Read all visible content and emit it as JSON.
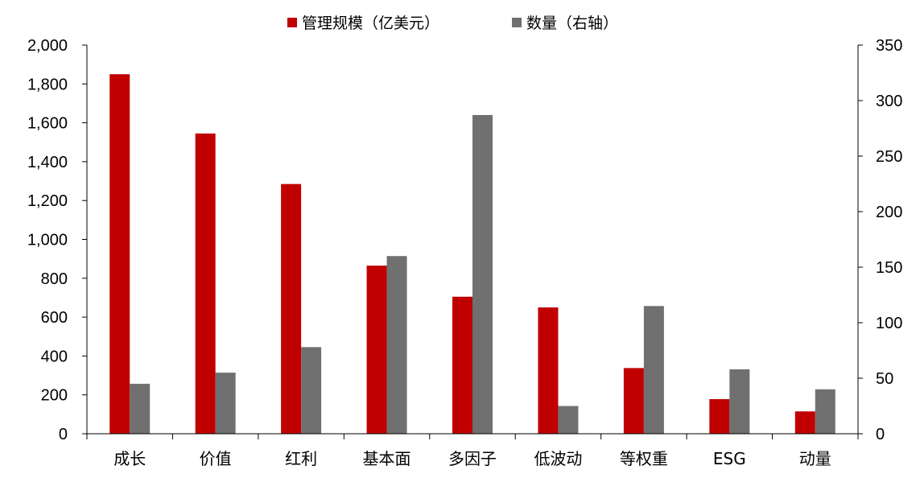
{
  "chart_data": {
    "type": "bar",
    "title": "",
    "xlabel": "",
    "ylabel": "",
    "ylabel_right": "",
    "legend_position": "top-center",
    "grid": false,
    "categories": [
      "成长",
      "价值",
      "红利",
      "基本面",
      "多因子",
      "低波动",
      "等权重",
      "ESG",
      "动量"
    ],
    "series": [
      {
        "name": "管理规模（亿美元）",
        "axis": "left",
        "color": "#c00000",
        "values": [
          1850,
          1545,
          1285,
          865,
          705,
          650,
          338,
          178,
          115
        ]
      },
      {
        "name": "数量（右轴）",
        "axis": "right",
        "color": "#707070",
        "values": [
          45,
          55,
          78,
          160,
          287,
          25,
          115,
          58,
          40
        ]
      }
    ],
    "ylim": [
      0,
      2000
    ],
    "ylim_right": [
      0,
      350
    ],
    "yticks": [
      "0",
      "200",
      "400",
      "600",
      "800",
      "1,000",
      "1,200",
      "1,400",
      "1,600",
      "1,800",
      "2,000"
    ],
    "yticks_right": [
      "0",
      "50",
      "100",
      "150",
      "200",
      "250",
      "300",
      "350"
    ]
  }
}
